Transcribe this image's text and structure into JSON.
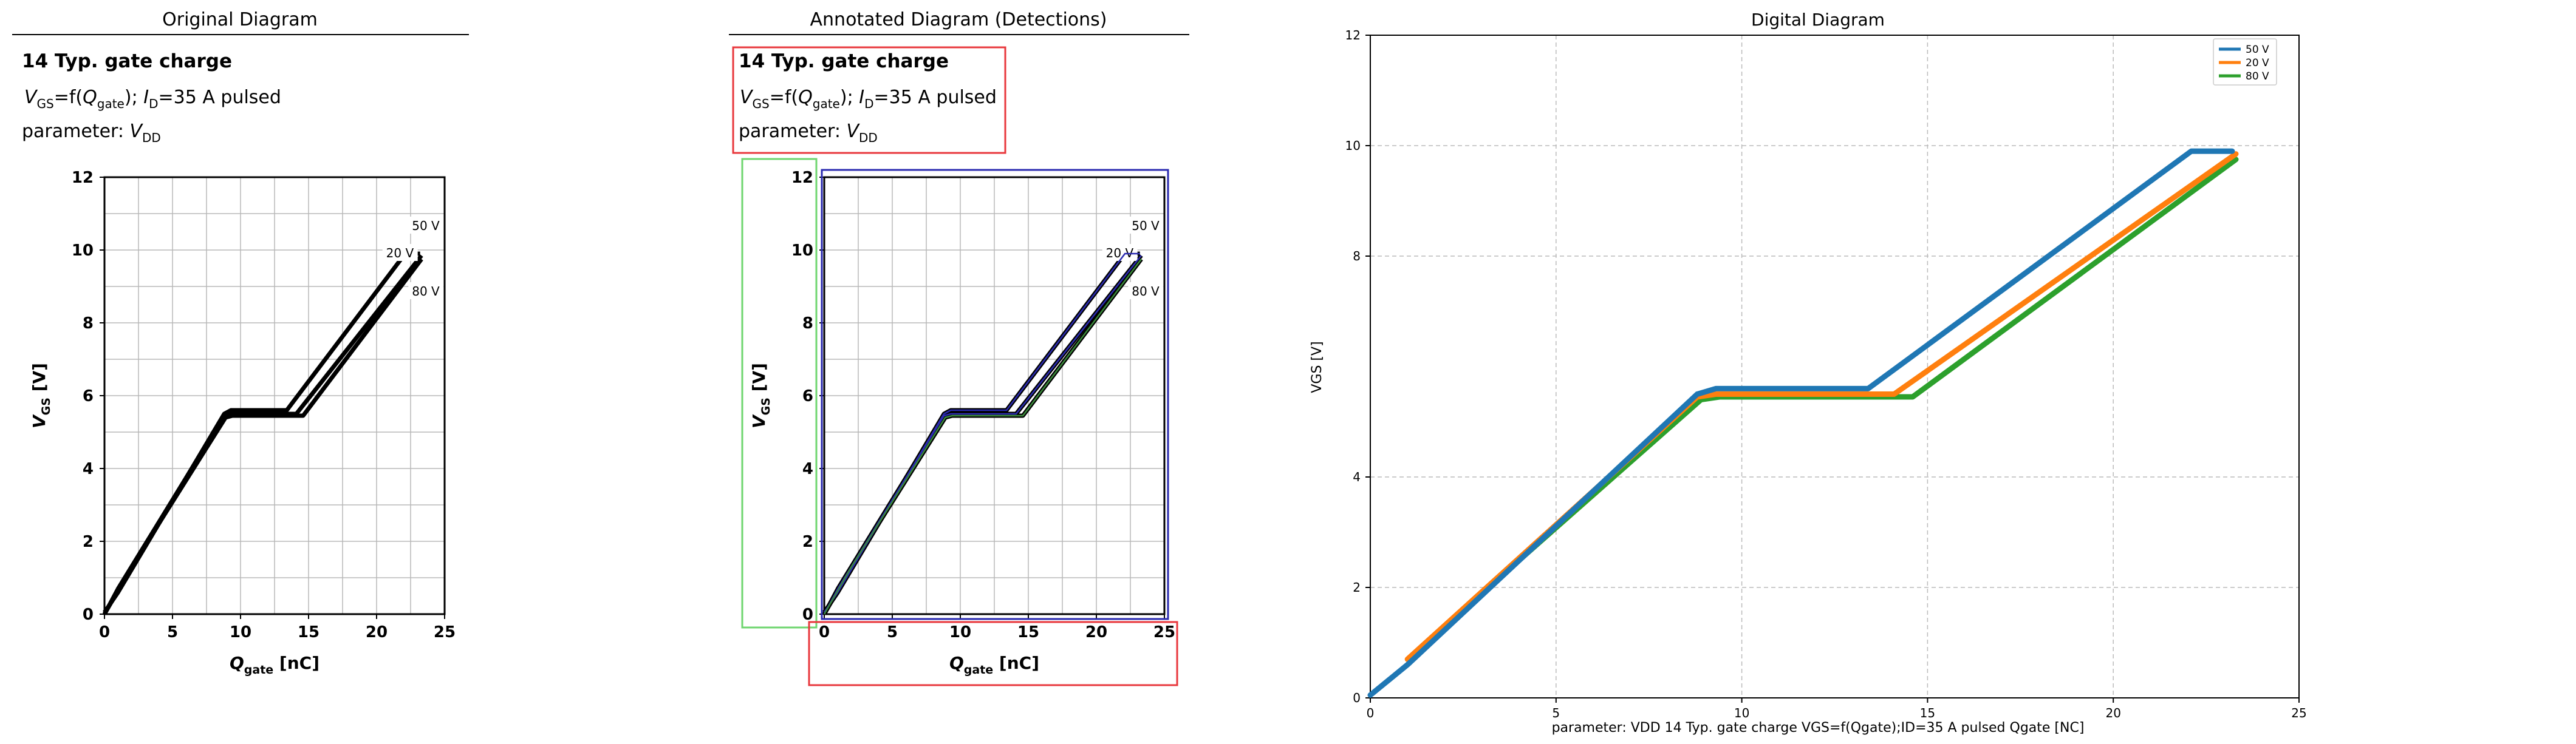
{
  "panels": {
    "original_title": "Original Diagram",
    "annotated_title": "Annotated Diagram (Detections)",
    "digital_title": "Digital Diagram"
  },
  "datasheet": {
    "title": "14 Typ. gate charge",
    "line2": {
      "v": "V",
      "gs": "GS",
      "eq1": "=f(",
      "q": "Q",
      "gate": "gate",
      "close": "); ",
      "i": "I",
      "d": "D",
      "rest": "=35 A pulsed"
    },
    "line3": {
      "prefix": "parameter: ",
      "v": "V",
      "dd": "DD"
    },
    "ylabel": {
      "v": "V",
      "gs": "GS",
      "unit": " [V]"
    },
    "xlabel": {
      "q": "Q",
      "gate": "gate",
      "unit": " [nC]"
    },
    "x_ticks": [
      "0",
      "5",
      "10",
      "15",
      "20",
      "25"
    ],
    "y_ticks": [
      "0",
      "2",
      "4",
      "6",
      "8",
      "10",
      "12"
    ],
    "curve_labels": [
      "50 V",
      "20 V",
      "80 V"
    ]
  },
  "colors": {
    "detection_red": "#e8383d",
    "detection_green": "#6fd66f",
    "detection_blue": "#2b2bb0",
    "grid": "#b8b8b8",
    "series": [
      "#1f77b4",
      "#ff7f0e",
      "#2ca02c"
    ]
  },
  "chart_data": {
    "type": "line",
    "title": "Digital Diagram",
    "xlabel": "parameter: VDD 14 Typ. gate charge VGS=f(Qgate);ID=35 A pulsed Qgate [NC]",
    "ylabel": "VGS [V]",
    "xlim": [
      0,
      25
    ],
    "ylim": [
      0,
      12
    ],
    "x_ticks": [
      "0",
      "5",
      "10",
      "15",
      "20",
      "25"
    ],
    "y_ticks": [
      "0",
      "2",
      "4",
      "8",
      "10",
      "12"
    ],
    "grid": true,
    "legend_position": "top-right",
    "series": [
      {
        "name": "50 V",
        "x": [
          0,
          1.0,
          8.8,
          9.3,
          13.4,
          22.1,
          23.2
        ],
        "y": [
          0.05,
          0.6,
          5.5,
          5.6,
          5.6,
          9.9,
          9.9
        ]
      },
      {
        "name": "20 V",
        "x": [
          1.0,
          8.8,
          9.3,
          14.1,
          23.3
        ],
        "y": [
          0.7,
          5.45,
          5.5,
          5.5,
          9.85
        ]
      },
      {
        "name": "80 V",
        "x": [
          2.0,
          8.9,
          9.4,
          14.6,
          23.3
        ],
        "y": [
          1.3,
          5.4,
          5.45,
          5.45,
          9.75
        ]
      }
    ]
  }
}
